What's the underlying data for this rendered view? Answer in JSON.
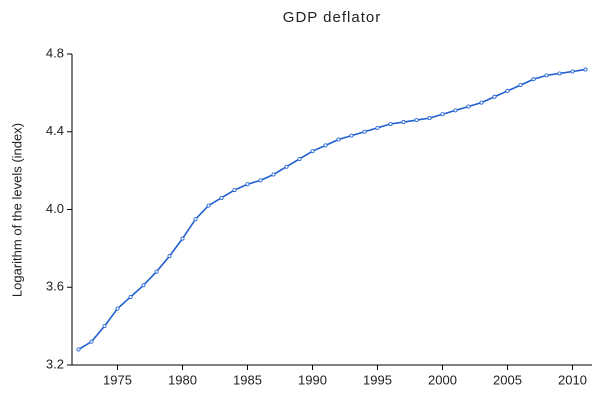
{
  "chart_data": {
    "type": "line",
    "title": "GDP deflator",
    "y_label": "Logarithm of the levels (index)",
    "x": [
      1972,
      1973,
      1974,
      1975,
      1976,
      1977,
      1978,
      1979,
      1980,
      1981,
      1982,
      1983,
      1984,
      1985,
      1986,
      1987,
      1988,
      1989,
      1990,
      1991,
      1992,
      1993,
      1994,
      1995,
      1996,
      1997,
      1998,
      1999,
      2000,
      2001,
      2002,
      2003,
      2004,
      2005,
      2006,
      2007,
      2008,
      2009,
      2010,
      2011
    ],
    "series": [
      {
        "color": "#1f5fd0",
        "values": [
          3.28,
          3.32,
          3.4,
          3.49,
          3.55,
          3.61,
          3.68,
          3.76,
          3.85,
          3.95,
          4.02,
          4.06,
          4.1,
          4.13,
          4.15,
          4.18,
          4.22,
          4.26,
          4.3,
          4.33,
          4.36,
          4.38,
          4.4,
          4.42,
          4.44,
          4.45,
          4.46,
          4.47,
          4.49,
          4.51,
          4.53,
          4.55,
          4.58,
          4.61,
          4.64,
          4.67,
          4.69,
          4.7,
          4.71,
          4.72
        ]
      }
    ],
    "xlim": [
      1971.5,
      2011.5
    ],
    "ylim": [
      3.2,
      4.8
    ],
    "xticks": [
      1975,
      1980,
      1985,
      1990,
      1995,
      2000,
      2005,
      2010
    ],
    "yticks": [
      3.2,
      3.6,
      {
        "value": 4,
        "label": "4.0"
      },
      4.4,
      4.8
    ]
  }
}
